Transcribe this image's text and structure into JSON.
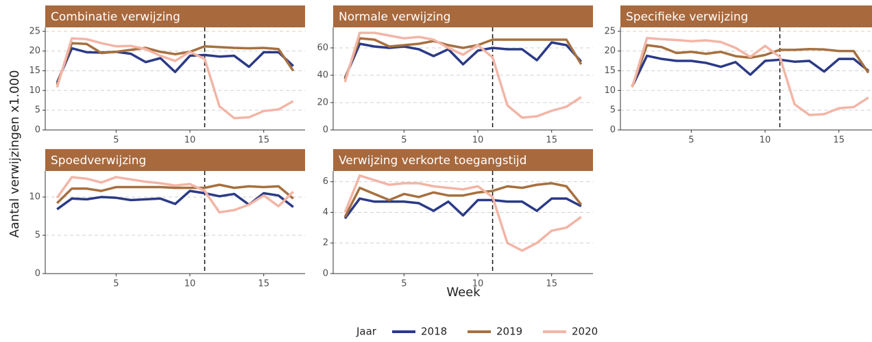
{
  "y_label": "Aantal verwijzingen x1.000",
  "x_label": "Week",
  "legend_title": "Jaar",
  "chart_data": [
    {
      "type": "line",
      "title": "Combinatie verwijzing",
      "x": [
        1,
        2,
        3,
        4,
        5,
        6,
        7,
        8,
        9,
        10,
        11,
        12,
        13,
        14,
        15,
        16,
        17
      ],
      "xlim": [
        0.2,
        17.8
      ],
      "xticks": [
        5,
        10,
        15
      ],
      "ylim": [
        0,
        26
      ],
      "yticks": [
        0,
        5,
        10,
        15,
        20,
        25
      ],
      "grid": true,
      "vline": 11,
      "series": [
        {
          "name": "2018",
          "color": "#2b3a86",
          "values": [
            12,
            20.7,
            19.7,
            19.6,
            19.8,
            19.3,
            17.2,
            18.2,
            14.7,
            18.8,
            19,
            18.6,
            18.8,
            16,
            19.7,
            19.7,
            16.2
          ]
        },
        {
          "name": "2019",
          "color": "#a6703f",
          "values": [
            11.5,
            22,
            21.8,
            19.5,
            19.8,
            20.3,
            20.8,
            19.8,
            19.2,
            19.8,
            21.2,
            21,
            20.8,
            20.7,
            20.8,
            20.5,
            15
          ]
        },
        {
          "name": "2020",
          "color": "#f2b5a6",
          "values": [
            10.8,
            23.2,
            23,
            22,
            21.2,
            21.3,
            20.5,
            18.8,
            17.5,
            19.8,
            18,
            6,
            3,
            3.2,
            4.8,
            5.2,
            7.3
          ]
        }
      ]
    },
    {
      "type": "line",
      "title": "Normale verwijzing",
      "x": [
        1,
        2,
        3,
        4,
        5,
        6,
        7,
        8,
        9,
        10,
        11,
        12,
        13,
        14,
        15,
        16,
        17
      ],
      "xlim": [
        0.2,
        17.8
      ],
      "xticks": [
        5,
        10,
        15
      ],
      "ylim": [
        0,
        75
      ],
      "yticks": [
        0,
        20,
        40,
        60
      ],
      "grid": true,
      "vline": 11,
      "series": [
        {
          "name": "2018",
          "color": "#2b3a86",
          "values": [
            38,
            63,
            61,
            60,
            61,
            59,
            54,
            59,
            48,
            58,
            60,
            59,
            59,
            51,
            64,
            62,
            50
          ]
        },
        {
          "name": "2019",
          "color": "#a6703f",
          "values": [
            37,
            67,
            66,
            61,
            62,
            63,
            65,
            62,
            60,
            62,
            66,
            66,
            66,
            66,
            66,
            66,
            48
          ]
        },
        {
          "name": "2020",
          "color": "#f2b5a6",
          "values": [
            35,
            71,
            71,
            69,
            67,
            68,
            66,
            60,
            55,
            62,
            53,
            18,
            9,
            10,
            14,
            17,
            24
          ]
        }
      ]
    },
    {
      "type": "line",
      "title": "Specifieke verwijzing",
      "x": [
        1,
        2,
        3,
        4,
        5,
        6,
        7,
        8,
        9,
        10,
        11,
        12,
        13,
        14,
        15,
        16,
        17
      ],
      "xlim": [
        0.2,
        17.8
      ],
      "xticks": [
        5,
        10,
        15
      ],
      "ylim": [
        0,
        26
      ],
      "yticks": [
        0,
        5,
        10,
        15,
        20,
        25
      ],
      "grid": true,
      "vline": 11,
      "series": [
        {
          "name": "2018",
          "color": "#2b3a86",
          "values": [
            11,
            18.8,
            18,
            17.5,
            17.5,
            17,
            16,
            17.2,
            14,
            17.5,
            17.8,
            17.3,
            17.5,
            14.8,
            18,
            18,
            15
          ]
        },
        {
          "name": "2019",
          "color": "#a6703f",
          "values": [
            11,
            21.5,
            21,
            19.5,
            19.8,
            19.3,
            19.8,
            18.7,
            18.3,
            19,
            20.3,
            20.3,
            20.5,
            20.4,
            20,
            20,
            14.5
          ]
        },
        {
          "name": "2020",
          "color": "#f2b5a6",
          "values": [
            10.8,
            23.3,
            23,
            22.8,
            22.5,
            22.7,
            22.3,
            20.8,
            18.5,
            21.3,
            18.5,
            6.5,
            3.8,
            4,
            5.5,
            5.8,
            8.2
          ]
        }
      ]
    },
    {
      "type": "line",
      "title": "Spoedverwijzing",
      "x": [
        1,
        2,
        3,
        4,
        5,
        6,
        7,
        8,
        9,
        10,
        11,
        12,
        13,
        14,
        15,
        16,
        17
      ],
      "xlim": [
        0.2,
        17.8
      ],
      "xticks": [
        5,
        10,
        15
      ],
      "ylim": [
        0,
        13.4
      ],
      "yticks": [
        0,
        5,
        10
      ],
      "grid": true,
      "vline": 11,
      "series": [
        {
          "name": "2018",
          "color": "#2b3a86",
          "values": [
            8.4,
            9.8,
            9.7,
            10,
            9.9,
            9.6,
            9.7,
            9.8,
            9.1,
            10.8,
            10.5,
            10.1,
            10.4,
            9,
            10.5,
            10.2,
            8.7
          ]
        },
        {
          "name": "2019",
          "color": "#a6703f",
          "values": [
            9.2,
            11.1,
            11.1,
            10.8,
            11.3,
            11.3,
            11.3,
            11.3,
            11.2,
            11.2,
            11.2,
            11.6,
            11.2,
            11.4,
            11.3,
            11.4,
            9.8
          ]
        },
        {
          "name": "2020",
          "color": "#f2b5a6",
          "values": [
            9.9,
            12.6,
            12.4,
            11.9,
            12.6,
            12.3,
            12,
            11.8,
            11.5,
            11.7,
            10.8,
            8,
            8.3,
            9,
            10.2,
            8.8,
            10.7
          ]
        }
      ]
    },
    {
      "type": "line",
      "title": "Verwijzing verkorte toegangstijd",
      "x": [
        1,
        2,
        3,
        4,
        5,
        6,
        7,
        8,
        9,
        10,
        11,
        12,
        13,
        14,
        15,
        16,
        17
      ],
      "xlim": [
        0.2,
        17.8
      ],
      "xticks": [
        5,
        10,
        15
      ],
      "ylim": [
        0,
        6.7
      ],
      "yticks": [
        0,
        2,
        4,
        6
      ],
      "grid": true,
      "vline": 11,
      "series": [
        {
          "name": "2018",
          "color": "#2b3a86",
          "values": [
            3.6,
            4.9,
            4.7,
            4.7,
            4.7,
            4.6,
            4.1,
            4.7,
            3.8,
            4.8,
            4.8,
            4.7,
            4.7,
            4.1,
            4.9,
            4.9,
            4.4
          ]
        },
        {
          "name": "2019",
          "color": "#a6703f",
          "values": [
            3.7,
            5.6,
            5.2,
            4.8,
            5.2,
            5,
            5.3,
            5.1,
            5.1,
            5.3,
            5.4,
            5.7,
            5.6,
            5.8,
            5.9,
            5.7,
            4.5
          ]
        },
        {
          "name": "2020",
          "color": "#f2b5a6",
          "values": [
            4,
            6.4,
            6.1,
            5.8,
            5.9,
            5.9,
            5.7,
            5.6,
            5.5,
            5.7,
            5,
            2,
            1.5,
            2,
            2.8,
            3,
            3.7
          ]
        }
      ]
    }
  ]
}
